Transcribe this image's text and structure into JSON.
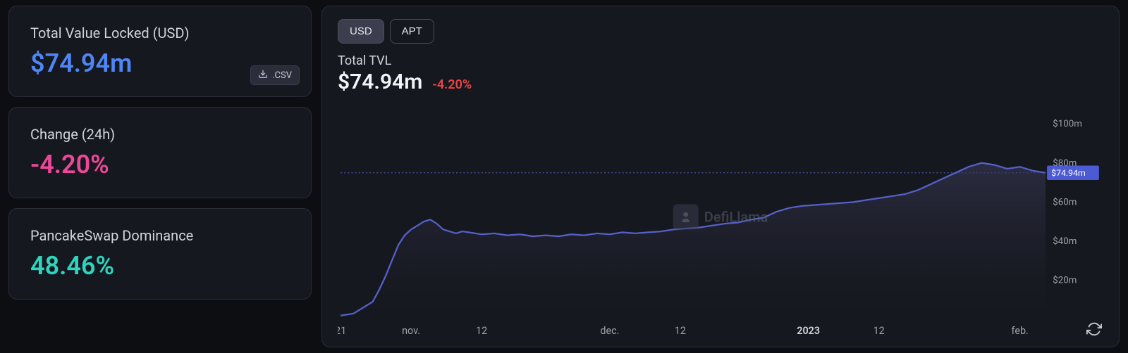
{
  "cards": {
    "tvl": {
      "label": "Total Value Locked (USD)",
      "value": "$74.94m",
      "value_color": "#4f86f7"
    },
    "change": {
      "label": "Change (24h)",
      "value": "-4.20%",
      "value_color": "#ec4899"
    },
    "dominance": {
      "label": "PancakeSwap Dominance",
      "value": "48.46%",
      "value_color": "#2dd4bf"
    },
    "csv_label": ".CSV"
  },
  "toggles": {
    "usd": "USD",
    "apt": "APT",
    "active": "usd"
  },
  "chart": {
    "type": "area",
    "subtitle": "Total TVL",
    "value": "$74.94m",
    "change": "-4.20%",
    "change_color": "#ef4444",
    "line_color": "#5561c9",
    "fill_top": "#3a3a58",
    "fill_bottom": "#1b1c24",
    "background": "#16181f",
    "grid_color": "#2a2d38",
    "watermark": "DefiLlama",
    "current_badge": "$74.94m",
    "ylim": [
      0,
      110
    ],
    "yticks": [
      {
        "v": 20,
        "label": "$20m"
      },
      {
        "v": 40,
        "label": "$40m"
      },
      {
        "v": 60,
        "label": "$60m"
      },
      {
        "v": 80,
        "label": "$80m"
      },
      {
        "v": 100,
        "label": "$100m"
      }
    ],
    "xlim": [
      0,
      110
    ],
    "xticks": [
      {
        "v": 0,
        "label": "21"
      },
      {
        "v": 11,
        "label": "nov."
      },
      {
        "v": 22,
        "label": "12"
      },
      {
        "v": 42,
        "label": "dec."
      },
      {
        "v": 53,
        "label": "12"
      },
      {
        "v": 73,
        "label": "2023",
        "bold": true
      },
      {
        "v": 84,
        "label": "12"
      },
      {
        "v": 106,
        "label": "feb."
      }
    ],
    "series": [
      [
        0,
        2
      ],
      [
        2,
        3
      ],
      [
        4,
        7
      ],
      [
        5,
        9
      ],
      [
        6,
        15
      ],
      [
        7,
        22
      ],
      [
        8,
        30
      ],
      [
        9,
        38
      ],
      [
        10,
        43
      ],
      [
        11,
        46
      ],
      [
        12,
        48
      ],
      [
        13,
        50
      ],
      [
        14,
        51
      ],
      [
        15,
        49
      ],
      [
        16,
        46
      ],
      [
        17,
        45
      ],
      [
        18,
        44
      ],
      [
        19,
        45
      ],
      [
        20,
        44.5
      ],
      [
        22,
        43.5
      ],
      [
        24,
        44
      ],
      [
        26,
        43
      ],
      [
        28,
        43.5
      ],
      [
        30,
        42.5
      ],
      [
        32,
        43
      ],
      [
        34,
        42.5
      ],
      [
        36,
        43.5
      ],
      [
        38,
        43
      ],
      [
        40,
        44
      ],
      [
        42,
        43.5
      ],
      [
        44,
        44.5
      ],
      [
        46,
        44
      ],
      [
        48,
        44.5
      ],
      [
        50,
        45
      ],
      [
        52,
        46
      ],
      [
        54,
        46.5
      ],
      [
        56,
        47
      ],
      [
        58,
        48
      ],
      [
        60,
        49
      ],
      [
        62,
        49.5
      ],
      [
        64,
        51
      ],
      [
        66,
        52
      ],
      [
        68,
        55
      ],
      [
        70,
        57
      ],
      [
        72,
        58
      ],
      [
        74,
        58.5
      ],
      [
        76,
        59
      ],
      [
        78,
        59.5
      ],
      [
        80,
        60
      ],
      [
        82,
        61
      ],
      [
        84,
        62
      ],
      [
        86,
        63
      ],
      [
        88,
        64
      ],
      [
        90,
        66
      ],
      [
        92,
        69
      ],
      [
        94,
        72
      ],
      [
        96,
        75
      ],
      [
        98,
        78
      ],
      [
        100,
        80
      ],
      [
        102,
        79
      ],
      [
        104,
        77
      ],
      [
        106,
        78
      ],
      [
        108,
        76
      ],
      [
        110,
        74.94
      ]
    ]
  }
}
